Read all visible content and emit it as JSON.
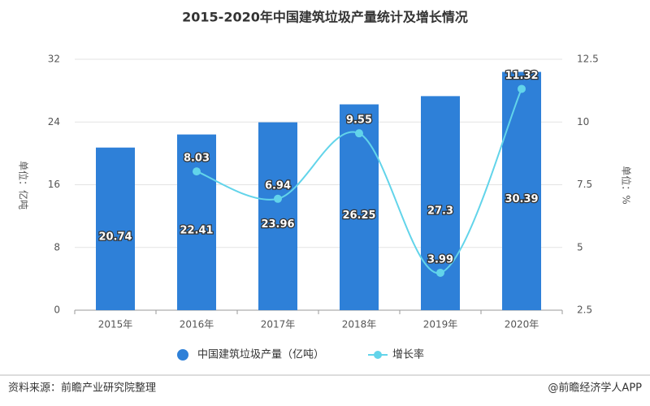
{
  "chart_data": {
    "type": "bar-line",
    "title": "2015-2020年中国建筑垃圾产量统计及增长情况",
    "categories": [
      "2015年",
      "2016年",
      "2017年",
      "2018年",
      "2019年",
      "2020年"
    ],
    "series": [
      {
        "name": "中国建筑垃圾产量（亿吨）",
        "type": "bar",
        "color": "#2e80d8",
        "values": [
          20.74,
          22.41,
          23.96,
          26.25,
          27.3,
          30.39
        ]
      },
      {
        "name": "增长率",
        "type": "line",
        "axis": "y2",
        "color": "#62d4ea",
        "values": [
          null,
          8.03,
          6.94,
          9.55,
          3.99,
          11.32
        ]
      }
    ],
    "ylabel": "单位：亿吨",
    "y2label": "单位：%",
    "ylim": [
      0,
      32
    ],
    "yticks": [
      0,
      8,
      16,
      24,
      32
    ],
    "y2lim": [
      2.5,
      12.5
    ],
    "y2ticks": [
      2.5,
      5,
      7.5,
      10,
      12.5
    ],
    "grid": true,
    "source": "资料来源：前瞻产业研究院整理",
    "credit": "@前瞻经济学人APP"
  }
}
